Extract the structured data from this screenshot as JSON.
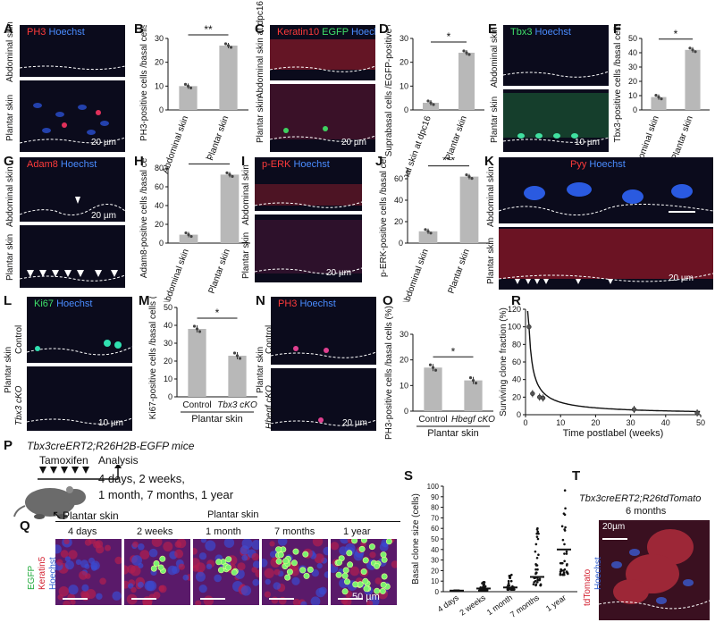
{
  "panels": {
    "A": {
      "letter": "A",
      "stain1": "PH3",
      "stain2": "Hoechst",
      "top": "Abdominal skin",
      "bottom": "Plantar skin",
      "scale": "20 µm"
    },
    "C": {
      "letter": "C",
      "stain1": "Keratin10",
      "stain2": "EGFP",
      "stain3": "Hoechst",
      "top": "Abdominal skin at dpc16",
      "bottom": "Plantar skin",
      "scale": "20 µm"
    },
    "E": {
      "letter": "E",
      "stain1": "Tbx3",
      "stain2": "Hoechst",
      "top": "Abdominal skin",
      "bottom": "Plantar skin",
      "scale": "10 µm"
    },
    "G": {
      "letter": "G",
      "stain1": "Adam8",
      "stain2": "Hoechst",
      "top": "Abdominal skin",
      "bottom": "Plantar skin",
      "scale": "20 µm"
    },
    "I": {
      "letter": "I",
      "stain1": "p-ERK",
      "stain2": "Hoechst",
      "top": "Abdominal skin",
      "bottom": "Plantar skin",
      "scale": "20 µm"
    },
    "K": {
      "letter": "K",
      "stain1": "Pyy",
      "stain2": "Hoechst",
      "top": "Abdominal skin",
      "bottom": "Plantar skin",
      "scale": "20 µm"
    },
    "L": {
      "letter": "L",
      "stain1": "Ki67",
      "stain2": "Hoechst",
      "side": "Plantar skin",
      "top": "Control",
      "bottom": "Tbx3 cKO",
      "scale": "10 µm"
    },
    "N": {
      "letter": "N",
      "stain1": "PH3",
      "stain2": "Hoechst",
      "side": "Plantar skin",
      "top": "Control",
      "bottom": "Hbegf cKO",
      "scale": "20 µm"
    },
    "P": {
      "letter": "P",
      "genotype": "Tbx3creERT2;R26H2B-EGFP mice",
      "tam": "Tamoxifen",
      "analysis": "Analysis",
      "times1": "4 days, 2 weeks,",
      "times2": "1 month, 7 months, 1 year",
      "site": "Plantar skin"
    },
    "Q": {
      "letter": "Q",
      "header": "Plantar skin",
      "times": [
        "4 days",
        "2 weeks",
        "1 month",
        "7 months",
        "1 year"
      ],
      "stain1": "EGFP",
      "stain2": "Keratin5",
      "stain3": "Hoechst",
      "scale": "50 µm"
    },
    "T": {
      "letter": "T",
      "title1": "Tbx3creERT2;R26tdTomato",
      "title2": "6 months",
      "stain1": "tdTomato",
      "stain2": "Hoechst",
      "scale": "20µm"
    }
  },
  "colors": {
    "bar": "#b8b8b8",
    "micro_bg": "#0b0b1c",
    "red": "#ff3b3b",
    "blue": "#4a8cff",
    "green": "#3fe06a"
  },
  "chart_data": [
    {
      "id": "B",
      "type": "bar",
      "categories": [
        "Abdominal skin",
        "Plantar skin"
      ],
      "values": [
        10,
        27
      ],
      "ylabel": "PH3-positive cells /basal cells (%)",
      "ylim": [
        0,
        30
      ],
      "yticks": [
        0,
        10,
        20,
        30
      ],
      "significance": "**"
    },
    {
      "id": "D",
      "type": "bar",
      "categories": [
        "Abdominal skin at dpc16",
        "Plantar skin"
      ],
      "values": [
        3,
        24
      ],
      "ylabel": "Suprabasal cells /EGFP-positive cells (%)",
      "ylim": [
        0,
        30
      ],
      "yticks": [
        0,
        10,
        20,
        30
      ],
      "significance": "*"
    },
    {
      "id": "F",
      "type": "bar",
      "categories": [
        "Abdominal skin",
        "Plantar skin"
      ],
      "values": [
        9,
        42
      ],
      "ylabel": "Tbx3-positive cells /basal cells (%)",
      "ylim": [
        0,
        50
      ],
      "yticks": [
        0,
        10,
        20,
        30,
        40,
        50
      ],
      "significance": "*"
    },
    {
      "id": "H",
      "type": "bar",
      "categories": [
        "Abdominal skin",
        "Plantar skin"
      ],
      "values": [
        9,
        73
      ],
      "ylabel": "Adam8-positive cells /basal cells (%)",
      "ylim": [
        0,
        80
      ],
      "yticks": [
        0,
        20,
        40,
        60,
        80
      ],
      "significance": "**"
    },
    {
      "id": "J",
      "type": "bar",
      "categories": [
        "Abdominal skin",
        "Plantar skin"
      ],
      "values": [
        11,
        62
      ],
      "ylabel": "p-ERK-positive cells /basal cells (%)",
      "ylim": [
        0,
        70
      ],
      "yticks": [
        0,
        20,
        40,
        60
      ],
      "significance": "***"
    },
    {
      "id": "M",
      "type": "bar",
      "categories": [
        "Control",
        "Tbx3 cKO"
      ],
      "values": [
        38,
        23
      ],
      "ylabel": "Ki67-positive cells /basal cells (%)",
      "xlabel": "Plantar skin",
      "ylim": [
        0,
        50
      ],
      "yticks": [
        0,
        10,
        20,
        30,
        40,
        50
      ],
      "significance": "*"
    },
    {
      "id": "O",
      "type": "bar",
      "categories": [
        "Control",
        "Hbegf cKO"
      ],
      "values": [
        17,
        12
      ],
      "ylabel": "PH3-positive cells /basal cells (%)",
      "xlabel": "Plantar skin",
      "ylim": [
        0,
        30
      ],
      "yticks": [
        0,
        10,
        20,
        30
      ],
      "significance": "*"
    },
    {
      "id": "R",
      "type": "scatter",
      "x": [
        1,
        2,
        4,
        5,
        31,
        49
      ],
      "y": [
        100,
        24,
        20,
        19,
        6,
        2
      ],
      "xlabel": "Time postlabel (weeks)",
      "ylabel": "Surviving clone fraction (%)",
      "xlim": [
        0,
        50
      ],
      "xticks": [
        0,
        10,
        20,
        30,
        40,
        50
      ],
      "ylim": [
        0,
        120
      ],
      "yticks": [
        0,
        20,
        40,
        60,
        80,
        100,
        120
      ]
    },
    {
      "id": "S",
      "type": "scatter",
      "categories": [
        "4 days",
        "2 weeks",
        "1 month",
        "7 months",
        "1 year"
      ],
      "medians": [
        1,
        3,
        4,
        14,
        40
      ],
      "max": [
        1,
        10,
        16,
        62,
        98
      ],
      "ylabel": "Basal clone size (cells)",
      "ylim": [
        0,
        100
      ],
      "yticks": [
        0,
        10,
        20,
        30,
        40,
        50,
        60,
        70,
        80,
        90,
        100
      ]
    }
  ]
}
